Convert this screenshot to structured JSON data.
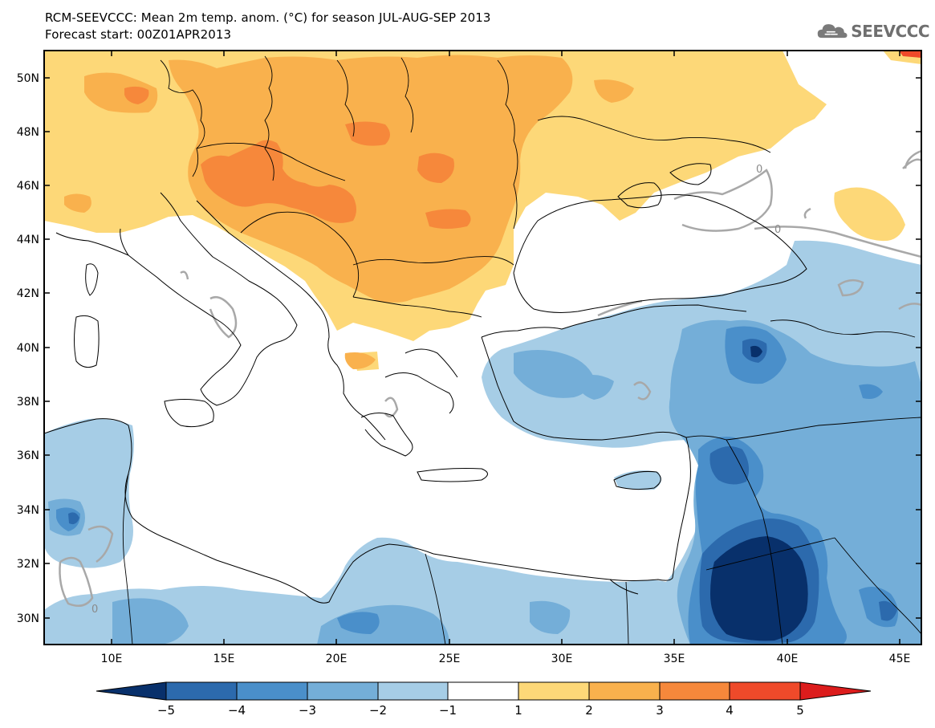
{
  "header": {
    "title_line1": "RCM-SEEVCCC: Mean 2m temp. anom. (°C) for season JUL-AUG-SEP 2013",
    "title_line2": "Forecast start: 00Z01APR2013"
  },
  "logo": {
    "text": "SEEVCCC",
    "icon": "cloud-logo-icon"
  },
  "map": {
    "lat_ticks": [
      "50N",
      "48N",
      "46N",
      "44N",
      "42N",
      "40N",
      "38N",
      "36N",
      "34N",
      "32N",
      "30N"
    ],
    "lon_ticks": [
      "10E",
      "15E",
      "20E",
      "25E",
      "30E",
      "35E",
      "40E",
      "45E"
    ],
    "contour_label": "0"
  },
  "colorbar": {
    "labels": [
      "−5",
      "−4",
      "−3",
      "−2",
      "−1",
      "1",
      "2",
      "3",
      "4",
      "5"
    ],
    "colors": [
      "#08306b",
      "#2c6aad",
      "#4a8fca",
      "#74aed8",
      "#a6cde6",
      "#ffffff",
      "#fdd878",
      "#f9b14d",
      "#f6883b",
      "#ef4a2a",
      "#dc1c1c"
    ]
  },
  "colors": {
    "warm1": "#fdd878",
    "warm2": "#f9b14d",
    "warm3": "#f6883b",
    "warm4": "#ef4a2a",
    "cool1": "#a6cde6",
    "cool2": "#74aed8",
    "cool3": "#4a8fca",
    "cool4": "#2c6aad",
    "cool5": "#08306b",
    "contour": "#a8a8a8"
  }
}
